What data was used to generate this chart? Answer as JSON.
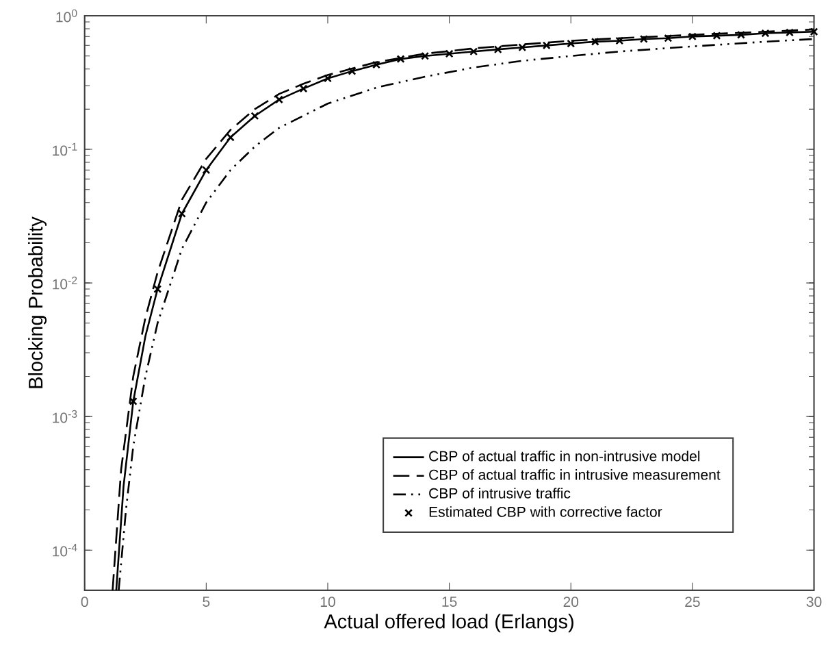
{
  "chart_data": {
    "type": "line",
    "xlabel": "Actual offered load (Erlangs)",
    "ylabel": "Blocking Probability",
    "xlim": [
      0,
      30
    ],
    "xticks": [
      0,
      5,
      10,
      15,
      20,
      25,
      30
    ],
    "ylim": [
      5e-05,
      1
    ],
    "log": "y",
    "yticks": [
      {
        "value": 0.0001,
        "label": "10$^{-4}$"
      },
      {
        "value": 0.001,
        "label": "10$^{-3}$"
      },
      {
        "value": 0.01,
        "label": "10$^{-2}$"
      },
      {
        "value": 0.1,
        "label": "10$^{-1}$"
      },
      {
        "value": 1,
        "label": "10$^{0}$"
      }
    ],
    "grid": false,
    "legend": "bottom right",
    "series": [
      {
        "name": "CBP of actual traffic in non-intrusive model",
        "color": "#000000",
        "line_style": "solid",
        "marker": "none",
        "x": [
          1.3,
          1.6,
          2,
          2.5,
          3,
          4,
          5,
          6,
          7,
          8,
          9,
          10,
          11,
          12,
          13,
          14,
          15,
          16,
          17,
          18,
          19,
          20,
          21,
          22,
          23,
          24,
          25,
          26,
          27,
          28,
          29,
          30
        ],
        "values": [
          5e-05,
          0.0003,
          0.0013,
          0.004,
          0.009,
          0.033,
          0.07,
          0.123,
          0.178,
          0.236,
          0.285,
          0.34,
          0.385,
          0.43,
          0.475,
          0.5,
          0.52,
          0.54,
          0.56,
          0.58,
          0.6,
          0.62,
          0.64,
          0.65,
          0.67,
          0.68,
          0.7,
          0.71,
          0.72,
          0.74,
          0.75,
          0.76
        ]
      },
      {
        "name": "CBP of actual traffic in intrusive measurement",
        "color": "#000000",
        "line_style": "dashed",
        "marker": "none",
        "x": [
          1.15,
          1.5,
          2,
          2.5,
          3,
          4,
          5,
          6,
          7,
          8,
          9,
          10,
          12,
          14,
          16,
          18,
          20,
          22,
          25,
          28,
          30
        ],
        "values": [
          5e-05,
          0.0004,
          0.002,
          0.0055,
          0.012,
          0.042,
          0.085,
          0.14,
          0.2,
          0.26,
          0.31,
          0.36,
          0.45,
          0.52,
          0.57,
          0.61,
          0.65,
          0.68,
          0.72,
          0.76,
          0.79
        ]
      },
      {
        "name": "CBP of intrusive traffic",
        "color": "#000000",
        "line_style": "dashdot",
        "marker": "none",
        "x": [
          1.4,
          1.7,
          2,
          2.5,
          3,
          4,
          5,
          6,
          7,
          8,
          10,
          12,
          14,
          16,
          18,
          20,
          22,
          25,
          28,
          30
        ],
        "values": [
          5e-05,
          0.0002,
          0.0006,
          0.002,
          0.005,
          0.018,
          0.04,
          0.07,
          0.105,
          0.145,
          0.22,
          0.29,
          0.35,
          0.41,
          0.46,
          0.5,
          0.54,
          0.59,
          0.64,
          0.67
        ]
      },
      {
        "name": "Estimated CBP with corrective factor",
        "type": "scatter",
        "color": "#000000",
        "marker": "cross",
        "x": [
          2,
          3,
          4,
          5,
          6,
          7,
          8,
          9,
          10,
          11,
          12,
          13,
          14,
          15,
          16,
          17,
          18,
          19,
          20,
          21,
          22,
          23,
          24,
          25,
          26,
          27,
          28,
          29,
          30
        ],
        "values": [
          0.0013,
          0.009,
          0.033,
          0.07,
          0.123,
          0.178,
          0.236,
          0.285,
          0.34,
          0.385,
          0.43,
          0.475,
          0.5,
          0.52,
          0.54,
          0.56,
          0.58,
          0.6,
          0.62,
          0.64,
          0.65,
          0.67,
          0.68,
          0.7,
          0.71,
          0.72,
          0.74,
          0.75,
          0.76
        ]
      }
    ]
  }
}
